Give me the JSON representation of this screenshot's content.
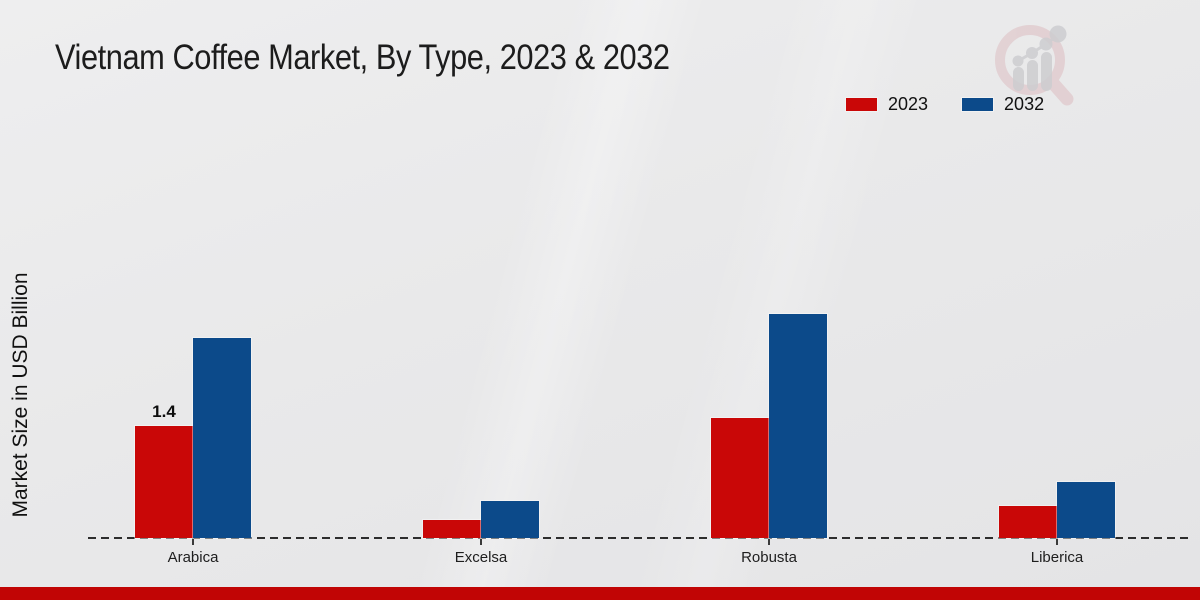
{
  "title": "Vietnam Coffee Market, By Type, 2023 & 2032",
  "y_axis_label": "Market Size in USD Billion",
  "legend": {
    "items": [
      {
        "label": "2023",
        "color": "#c90707"
      },
      {
        "label": "2032",
        "color": "#0c4a8a"
      }
    ]
  },
  "chart_data": {
    "type": "bar",
    "title": "Vietnam Coffee Market, By Type, 2023 & 2032",
    "categories": [
      "Arabica",
      "Excelsa",
      "Robusta",
      "Liberica"
    ],
    "series": [
      {
        "name": "2023",
        "color": "#c90707",
        "values": [
          1.4,
          0.22,
          1.5,
          0.4
        ]
      },
      {
        "name": "2032",
        "color": "#0c4a8a",
        "values": [
          2.5,
          0.46,
          2.8,
          0.7
        ]
      }
    ],
    "bar_labels": [
      {
        "series_index": 0,
        "category_index": 0,
        "text": "1.4"
      }
    ],
    "xlabel": "",
    "ylabel": "Market Size in USD Billion",
    "ylim": [
      0,
      3.1
    ],
    "grid": false,
    "legend_position": "top-right",
    "baseline_style": "dashed"
  },
  "logo": {
    "name": "market-research-future-watermark"
  },
  "colors": {
    "footer_bar": "#c10505",
    "background": "#e8e8e9",
    "axis": "#2d2d2d",
    "title_text": "#1c1c1c"
  }
}
